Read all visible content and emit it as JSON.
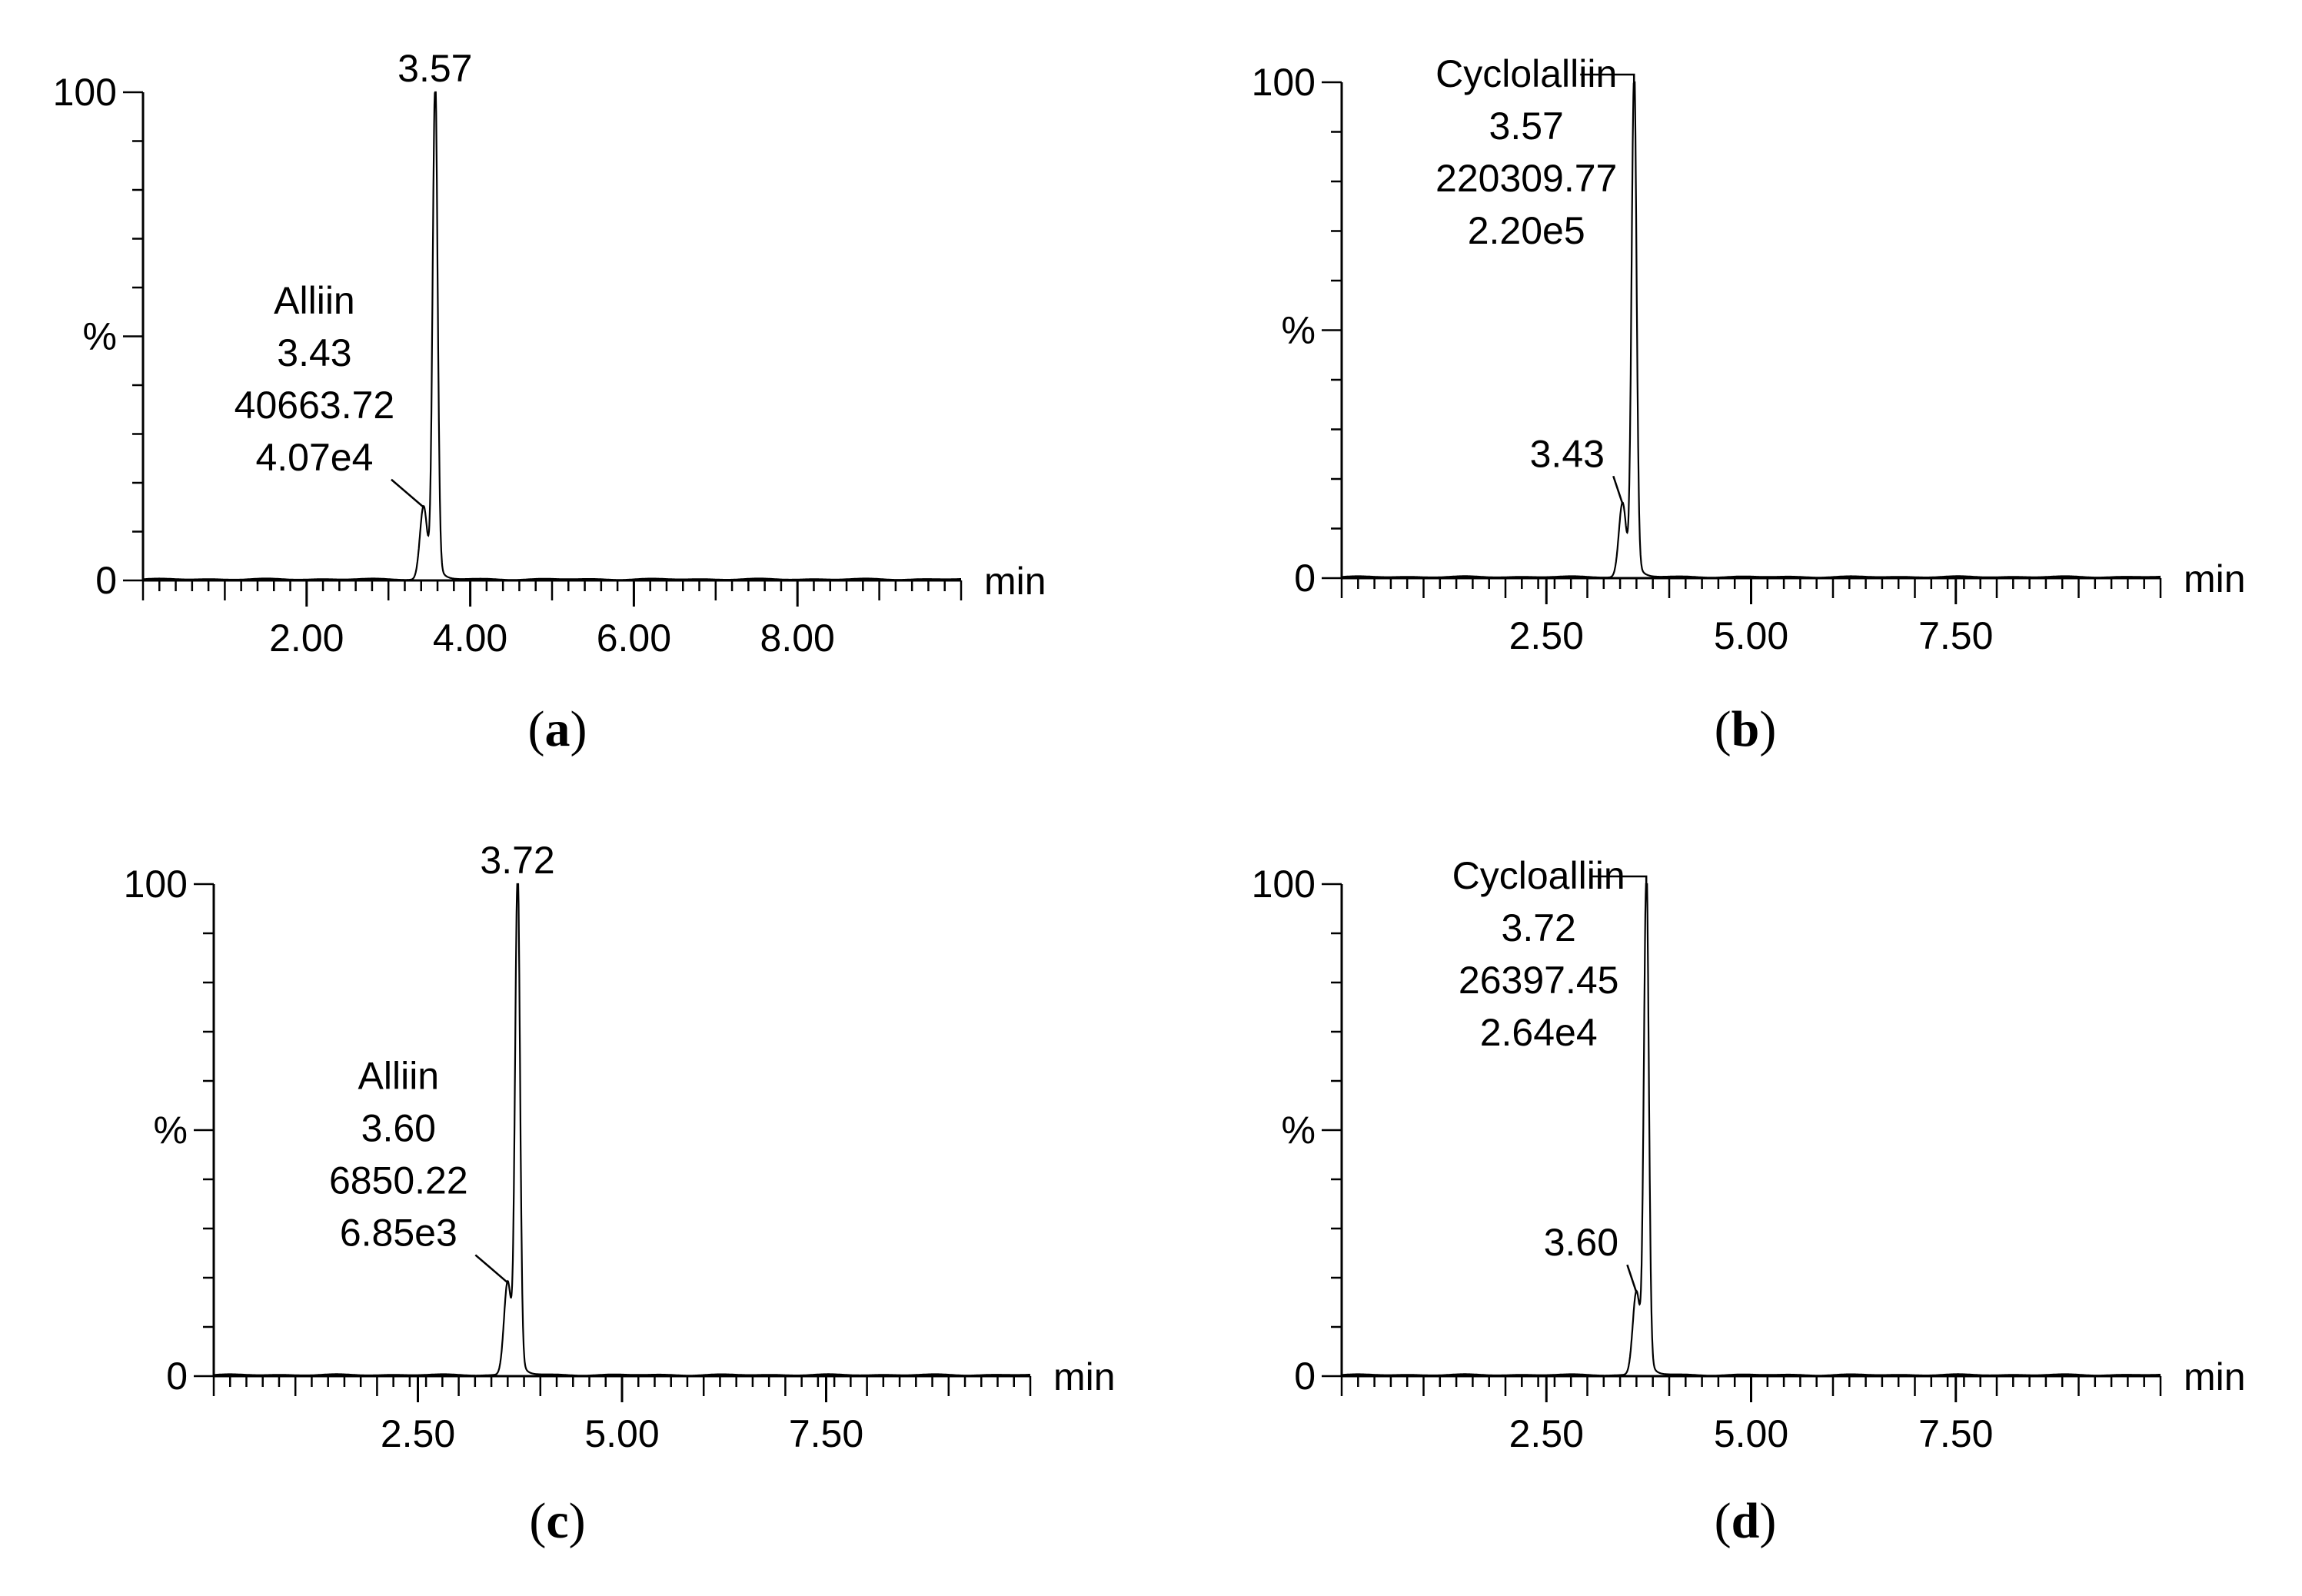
{
  "chart_data": [
    {
      "id": "a",
      "type": "line",
      "caption_letter": "a",
      "xlabel": "min",
      "ylabel": "%",
      "xlim": [
        0,
        10
      ],
      "ylim": [
        0,
        100
      ],
      "x_ticks": [
        2,
        4,
        6,
        8
      ],
      "x_tick_labels": [
        "2.00",
        "4.00",
        "6.00",
        "8.00"
      ],
      "y_tick_labels": [
        "0",
        "100"
      ],
      "peaks": [
        {
          "rt": 3.43,
          "height": 15,
          "width": 0.045,
          "label": [
            "Alliin",
            "3.43",
            "40663.72",
            "4.07e4"
          ]
        },
        {
          "rt": 3.57,
          "height": 100,
          "width": 0.03,
          "label": [
            "3.57"
          ]
        }
      ]
    },
    {
      "id": "b",
      "type": "line",
      "caption_letter": "b",
      "xlabel": "min",
      "ylabel": "%",
      "xlim": [
        0,
        10
      ],
      "ylim": [
        0,
        100
      ],
      "x_ticks": [
        2.5,
        5,
        7.5
      ],
      "x_tick_labels": [
        "2.50",
        "5.00",
        "7.50"
      ],
      "y_tick_labels": [
        "0",
        "100"
      ],
      "peaks": [
        {
          "rt": 3.43,
          "height": 15,
          "width": 0.045,
          "label": [
            "3.43"
          ]
        },
        {
          "rt": 3.57,
          "height": 100,
          "width": 0.03,
          "label": [
            "Cyclolalliin",
            "3.57",
            "220309.77",
            "2.20e5"
          ]
        }
      ]
    },
    {
      "id": "c",
      "type": "line",
      "caption_letter": "c",
      "xlabel": "min",
      "ylabel": "%",
      "xlim": [
        0,
        10
      ],
      "ylim": [
        0,
        100
      ],
      "x_ticks": [
        2.5,
        5,
        7.5
      ],
      "x_tick_labels": [
        "2.50",
        "5.00",
        "7.50"
      ],
      "y_tick_labels": [
        "0",
        "100"
      ],
      "peaks": [
        {
          "rt": 3.6,
          "height": 19,
          "width": 0.045,
          "label": [
            "Alliin",
            "3.60",
            "6850.22",
            "6.85e3"
          ]
        },
        {
          "rt": 3.72,
          "height": 100,
          "width": 0.03,
          "label": [
            "3.72"
          ]
        }
      ]
    },
    {
      "id": "d",
      "type": "line",
      "caption_letter": "d",
      "xlabel": "min",
      "ylabel": "%",
      "xlim": [
        0,
        10
      ],
      "ylim": [
        0,
        100
      ],
      "x_ticks": [
        2.5,
        5,
        7.5
      ],
      "x_tick_labels": [
        "2.50",
        "5.00",
        "7.50"
      ],
      "y_tick_labels": [
        "0",
        "100"
      ],
      "peaks": [
        {
          "rt": 3.6,
          "height": 17,
          "width": 0.045,
          "label": [
            "3.60"
          ]
        },
        {
          "rt": 3.72,
          "height": 100,
          "width": 0.03,
          "label": [
            "Cycloalliin",
            "3.72",
            "26397.45",
            "2.64e4"
          ]
        }
      ]
    }
  ]
}
